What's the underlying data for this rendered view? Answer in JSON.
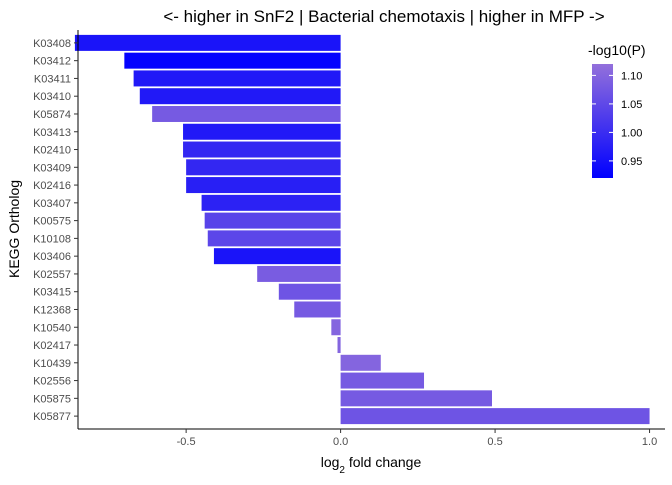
{
  "chart_data": {
    "type": "bar",
    "orientation": "horizontal",
    "title": "<- higher in SnF2 | Bacterial chemotaxis | higher in MFP ->",
    "xlabel": {
      "base": "log",
      "sub": "2",
      "rest": " fold change"
    },
    "ylabel": "KEGG Ortholog",
    "xlim": [
      -0.85,
      1.05
    ],
    "xticks": [
      -0.5,
      0.0,
      0.5,
      1.0
    ],
    "xtick_labels": [
      "-0.5",
      "0.0",
      "0.5",
      "1.0"
    ],
    "grid": false,
    "legend_placement": "top-right",
    "bars": [
      {
        "label": "K03408",
        "value": -0.86,
        "color_value": 0.955
      },
      {
        "label": "K03412",
        "value": -0.7,
        "color_value": 0.925
      },
      {
        "label": "K03411",
        "value": -0.67,
        "color_value": 0.965
      },
      {
        "label": "K03410",
        "value": -0.65,
        "color_value": 0.965
      },
      {
        "label": "K05874",
        "value": -0.61,
        "color_value": 1.08
      },
      {
        "label": "K03413",
        "value": -0.51,
        "color_value": 0.965
      },
      {
        "label": "K02410",
        "value": -0.51,
        "color_value": 0.99
      },
      {
        "label": "K03409",
        "value": -0.5,
        "color_value": 0.99
      },
      {
        "label": "K02416",
        "value": -0.5,
        "color_value": 0.975
      },
      {
        "label": "K03407",
        "value": -0.45,
        "color_value": 0.98
      },
      {
        "label": "K00575",
        "value": -0.44,
        "color_value": 1.04
      },
      {
        "label": "K10108",
        "value": -0.43,
        "color_value": 1.045
      },
      {
        "label": "K03406",
        "value": -0.41,
        "color_value": 0.955
      },
      {
        "label": "K02557",
        "value": -0.27,
        "color_value": 1.085
      },
      {
        "label": "K03415",
        "value": -0.2,
        "color_value": 1.07
      },
      {
        "label": "K12368",
        "value": -0.15,
        "color_value": 1.08
      },
      {
        "label": "K10540",
        "value": -0.03,
        "color_value": 1.1
      },
      {
        "label": "K02417",
        "value": -0.01,
        "color_value": 1.1
      },
      {
        "label": "K10439",
        "value": 0.13,
        "color_value": 1.1
      },
      {
        "label": "K02556",
        "value": 0.27,
        "color_value": 1.08
      },
      {
        "label": "K05875",
        "value": 0.49,
        "color_value": 1.08
      },
      {
        "label": "K05877",
        "value": 1.0,
        "color_value": 1.07
      }
    ],
    "legend": {
      "title": "-log10(P)",
      "range": [
        0.92,
        1.12
      ],
      "ticks": [
        0.95,
        1.0,
        1.05,
        1.1
      ],
      "tick_labels": [
        "0.95",
        "1.00",
        "1.05",
        "1.10"
      ],
      "color_low": "#0000ff",
      "color_high": "#9370db"
    }
  }
}
